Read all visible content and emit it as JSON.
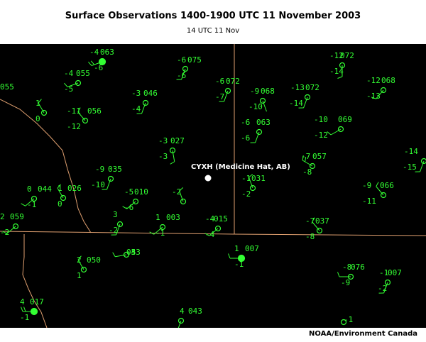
{
  "header": {
    "title": "Surface Observations 1400-1900 UTC 11 November 2003",
    "subtitle": "14 UTC 11 Nov"
  },
  "footer": {
    "credit": "NOAA/Environment Canada"
  },
  "colors": {
    "background": "#000000",
    "station": "#33ff33",
    "border": "#e0a070",
    "marker": "#ffffff"
  },
  "marker": {
    "label": "CYXH (Medicine Hat, AB)"
  },
  "stations": [
    {
      "t": "-4",
      "p": "063",
      "d": "-6"
    },
    {
      "t": "-6",
      "p": "075",
      "d": "-6"
    },
    {
      "t": "-12",
      "p": "072",
      "d": "-14"
    },
    {
      "t": "-4",
      "p": "055",
      "d": "-5"
    },
    {
      "t": "-3",
      "p": "046",
      "d": "-4"
    },
    {
      "t": "-6",
      "p": "072",
      "d": "-7"
    },
    {
      "t": "-9",
      "p": "068",
      "d": "-10"
    },
    {
      "t": "-13",
      "p": "072",
      "d": "-14"
    },
    {
      "t": "-12",
      "p": "068",
      "d": "-13"
    },
    {
      "t": "",
      "p": "055",
      "d": ""
    },
    {
      "t": "1",
      "p": "",
      "d": "0"
    },
    {
      "t": "-11",
      "p": "056",
      "d": "-12"
    },
    {
      "t": "-6",
      "p": "063",
      "d": "-6"
    },
    {
      "t": "-10",
      "p": "069",
      "d": "-12"
    },
    {
      "t": "-3",
      "p": "027",
      "d": "-3"
    },
    {
      "t": "-14",
      "p": "",
      "d": "-15"
    },
    {
      "t": "-7",
      "p": "057",
      "d": "-8"
    },
    {
      "t": "-9",
      "p": "035",
      "d": "-10"
    },
    {
      "t": "-1",
      "p": "031",
      "d": "-2"
    },
    {
      "t": "0",
      "p": "044",
      "d": "-1"
    },
    {
      "t": "1",
      "p": "026",
      "d": "0"
    },
    {
      "t": "-5",
      "p": "010",
      "d": "-6"
    },
    {
      "t": "-2",
      "p": "",
      "d": ""
    },
    {
      "t": "-9",
      "p": "066",
      "d": "-11"
    },
    {
      "t": "2",
      "p": "059",
      "d": "-2"
    },
    {
      "t": "3",
      "p": "",
      "d": "-2"
    },
    {
      "t": "1",
      "p": "003",
      "d": "-1"
    },
    {
      "t": "-4",
      "p": "015",
      "d": "-4"
    },
    {
      "t": "-7",
      "p": "037",
      "d": "-8"
    },
    {
      "t": "1",
      "p": "007",
      "d": "-1"
    },
    {
      "t": "2",
      "p": "050",
      "d": "1"
    },
    {
      "t": "-3",
      "p": "053",
      "d": "-4"
    },
    {
      "t": "-8",
      "p": "076",
      "d": "-9"
    },
    {
      "t": "-1",
      "p": "007",
      "d": "-2"
    },
    {
      "t": "4",
      "p": "017",
      "d": "-1"
    },
    {
      "t": "4",
      "p": "043",
      "d": ""
    },
    {
      "t": "",
      "p": "",
      "d": "-1"
    }
  ]
}
